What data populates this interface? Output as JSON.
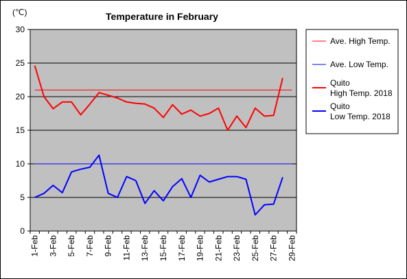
{
  "chart_data": {
    "type": "line",
    "title": "Temperature in February",
    "y_unit": "(℃)",
    "xlabel": "",
    "ylabel": "",
    "ylim": [
      0,
      30
    ],
    "y_ticks": [
      0,
      5,
      10,
      15,
      20,
      25,
      30
    ],
    "grid": "horizontal",
    "legend_position": "right",
    "x_categories": [
      "1-Feb",
      "2-Feb",
      "3-Feb",
      "4-Feb",
      "5-Feb",
      "6-Feb",
      "7-Feb",
      "8-Feb",
      "9-Feb",
      "10-Feb",
      "11-Feb",
      "12-Feb",
      "13-Feb",
      "14-Feb",
      "15-Feb",
      "16-Feb",
      "17-Feb",
      "18-Feb",
      "19-Feb",
      "20-Feb",
      "21-Feb",
      "22-Feb",
      "23-Feb",
      "24-Feb",
      "25-Feb",
      "26-Feb",
      "27-Feb",
      "28-Feb",
      "29-Feb"
    ],
    "x_tick_labels": [
      "1-Feb",
      "3-Feb",
      "5-Feb",
      "7-Feb",
      "9-Feb",
      "11-Feb",
      "13-Feb",
      "15-Feb",
      "17-Feb",
      "19-Feb",
      "21-Feb",
      "23-Feb",
      "25-Feb",
      "27-Feb",
      "29-Feb"
    ],
    "series": [
      {
        "name": "Ave. High Temp.",
        "color": "#ff0000",
        "style": "thin",
        "values": [
          21,
          21,
          21,
          21,
          21,
          21,
          21,
          21,
          21,
          21,
          21,
          21,
          21,
          21,
          21,
          21,
          21,
          21,
          21,
          21,
          21,
          21,
          21,
          21,
          21,
          21,
          21,
          21,
          21
        ]
      },
      {
        "name": "Ave. Low Temp.",
        "color": "#0000ff",
        "style": "thin",
        "values": [
          10,
          10,
          10,
          10,
          10,
          10,
          10,
          10,
          10,
          10,
          10,
          10,
          10,
          10,
          10,
          10,
          10,
          10,
          10,
          10,
          10,
          10,
          10,
          10,
          10,
          10,
          10,
          10,
          10
        ]
      },
      {
        "name": "Quito High Temp. 2018",
        "legend_lines": [
          "Quito",
          "High Temp. 2018"
        ],
        "color": "#ff0000",
        "style": "thick",
        "values": [
          24.6,
          20.0,
          18.2,
          19.2,
          19.2,
          17.3,
          18.9,
          20.6,
          20.2,
          19.8,
          19.2,
          19.0,
          18.9,
          18.3,
          16.9,
          18.8,
          17.4,
          18.0,
          17.1,
          17.5,
          18.3,
          15.0,
          17.1,
          15.4,
          18.3,
          17.1,
          17.2,
          22.8
        ]
      },
      {
        "name": "Quito Low Temp. 2018",
        "legend_lines": [
          "Quito",
          "Low Temp. 2018"
        ],
        "color": "#0000ff",
        "style": "thick",
        "values": [
          5.0,
          5.6,
          6.8,
          5.7,
          8.8,
          9.2,
          9.5,
          11.3,
          5.6,
          5.0,
          8.1,
          7.5,
          4.1,
          6.0,
          4.5,
          6.6,
          7.8,
          5.0,
          8.3,
          7.3,
          7.7,
          8.1,
          8.1,
          7.7,
          2.4,
          3.9,
          4.0,
          8.0
        ]
      }
    ]
  }
}
